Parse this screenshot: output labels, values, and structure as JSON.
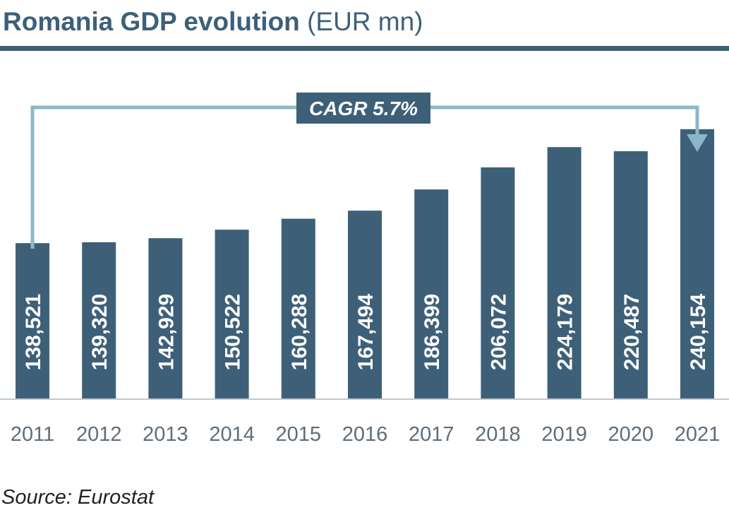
{
  "header": {
    "title_main": "Romania GDP evolution",
    "title_unit": "(EUR mn)"
  },
  "annotation": {
    "cagr_label": "CAGR 5.7%"
  },
  "source": "Source: Eurostat",
  "colors": {
    "bar": "#3d6078",
    "arrow": "#8ab8c8",
    "axis": "#bfc8cf",
    "tick_text": "#5f6d78",
    "value_text": "#ffffff"
  },
  "chart_data": {
    "type": "bar",
    "categories": [
      "2011",
      "2012",
      "2013",
      "2014",
      "2015",
      "2016",
      "2017",
      "2018",
      "2019",
      "2020",
      "2021"
    ],
    "values": [
      138521,
      139320,
      142929,
      150522,
      160288,
      167494,
      186399,
      206072,
      224179,
      220487,
      240154
    ],
    "value_labels": [
      "138,521",
      "139,320",
      "142,929",
      "150,522",
      "160,288",
      "167,494",
      "186,399",
      "206,072",
      "224,179",
      "220,487",
      "240,154"
    ],
    "title": "Romania GDP evolution (EUR mn)",
    "xlabel": "",
    "ylabel": "",
    "ylim": [
      0,
      293000
    ],
    "grid": false,
    "legend": "none",
    "value_label_orientation": "vertical"
  }
}
